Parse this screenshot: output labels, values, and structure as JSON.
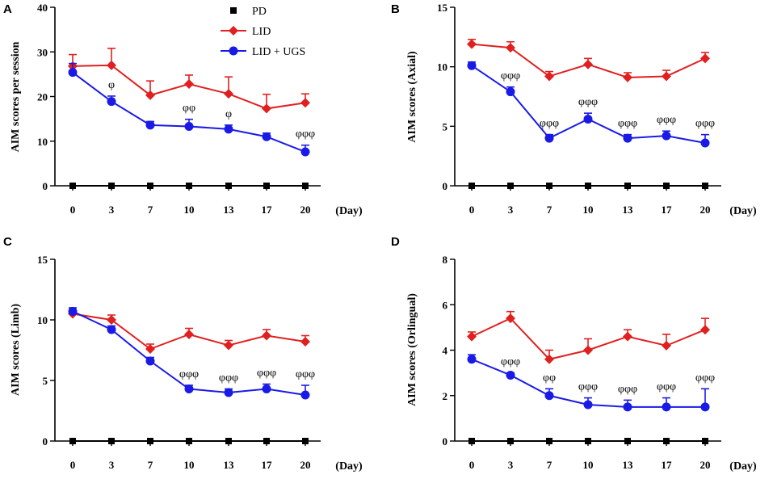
{
  "figure": {
    "legend": {
      "entries": [
        {
          "label": "PD",
          "color": "#000000",
          "marker": "square"
        },
        {
          "label": "LID",
          "color": "#e02020",
          "marker": "diamond"
        },
        {
          "label": "LID + UGS",
          "color": "#1a1ae6",
          "marker": "circle"
        }
      ]
    }
  },
  "chart_data": [
    {
      "panel": "A",
      "type": "line",
      "xlabel": "(Day)",
      "ylabel": "AIM scores per session",
      "categories": [
        "0",
        "3",
        "7",
        "10",
        "13",
        "17",
        "20"
      ],
      "ylim": [
        0,
        40
      ],
      "yticks": [
        0,
        10,
        20,
        30,
        40
      ],
      "series": [
        {
          "name": "PD",
          "values": [
            0,
            0,
            0,
            0,
            0,
            0,
            0
          ],
          "errors": [
            0,
            0,
            0,
            0,
            0,
            0,
            0
          ]
        },
        {
          "name": "LID",
          "values": [
            26.8,
            27.0,
            20.3,
            22.8,
            20.6,
            17.3,
            18.6
          ],
          "errors": [
            2.6,
            3.8,
            3.2,
            2.0,
            3.8,
            3.2,
            2.0
          ]
        },
        {
          "name": "LID + UGS",
          "values": [
            25.4,
            18.9,
            13.6,
            13.3,
            12.7,
            11.0,
            7.6
          ],
          "errors": [
            2.0,
            1.2,
            0.8,
            1.6,
            0.9,
            0.8,
            1.5
          ]
        }
      ],
      "annotations": [
        {
          "category": "3",
          "text": "φ"
        },
        {
          "category": "10",
          "text": "φφ"
        },
        {
          "category": "13",
          "text": "φ"
        },
        {
          "category": "20",
          "text": "φφφ"
        }
      ]
    },
    {
      "panel": "B",
      "type": "line",
      "xlabel": "(Day)",
      "ylabel": "AIM scores (Axial)",
      "categories": [
        "0",
        "3",
        "7",
        "10",
        "13",
        "17",
        "20"
      ],
      "ylim": [
        0,
        15
      ],
      "yticks": [
        0,
        5,
        10,
        15
      ],
      "series": [
        {
          "name": "PD",
          "values": [
            0,
            0,
            0,
            0,
            0,
            0,
            0
          ],
          "errors": [
            0,
            0,
            0,
            0,
            0,
            0,
            0
          ]
        },
        {
          "name": "LID",
          "values": [
            11.9,
            11.6,
            9.2,
            10.2,
            9.1,
            9.2,
            10.7
          ],
          "errors": [
            0.4,
            0.5,
            0.4,
            0.5,
            0.4,
            0.5,
            0.5
          ]
        },
        {
          "name": "LID + UGS",
          "values": [
            10.1,
            7.9,
            4.0,
            5.6,
            4.0,
            4.2,
            3.6
          ],
          "errors": [
            0.3,
            0.4,
            0.3,
            0.5,
            0.3,
            0.4,
            0.7
          ]
        }
      ],
      "annotations": [
        {
          "category": "3",
          "text": "φφφ"
        },
        {
          "category": "7",
          "text": "φφφ"
        },
        {
          "category": "10",
          "text": "φφφ"
        },
        {
          "category": "13",
          "text": "φφφ"
        },
        {
          "category": "17",
          "text": "φφφ"
        },
        {
          "category": "20",
          "text": "φφφ"
        }
      ]
    },
    {
      "panel": "C",
      "type": "line",
      "xlabel": "(Day)",
      "ylabel": "AIM scores (Limb)",
      "categories": [
        "0",
        "3",
        "7",
        "10",
        "13",
        "17",
        "20"
      ],
      "ylim": [
        0,
        15
      ],
      "yticks": [
        0,
        5,
        10,
        15
      ],
      "series": [
        {
          "name": "PD",
          "values": [
            0,
            0,
            0,
            0,
            0,
            0,
            0
          ],
          "errors": [
            0,
            0,
            0,
            0,
            0,
            0,
            0
          ]
        },
        {
          "name": "LID",
          "values": [
            10.5,
            10.0,
            7.6,
            8.8,
            7.9,
            8.7,
            8.2
          ],
          "errors": [
            0.3,
            0.4,
            0.4,
            0.5,
            0.4,
            0.5,
            0.5
          ]
        },
        {
          "name": "LID + UGS",
          "values": [
            10.7,
            9.2,
            6.6,
            4.3,
            4.0,
            4.3,
            3.8
          ],
          "errors": [
            0.3,
            0.3,
            0.3,
            0.3,
            0.3,
            0.4,
            0.8
          ]
        }
      ],
      "annotations": [
        {
          "category": "10",
          "text": "φφφ"
        },
        {
          "category": "13",
          "text": "φφφ"
        },
        {
          "category": "17",
          "text": "φφφ"
        },
        {
          "category": "20",
          "text": "φφφ"
        }
      ]
    },
    {
      "panel": "D",
      "type": "line",
      "xlabel": "(Day)",
      "ylabel": "AIM scores (Orlingual)",
      "categories": [
        "0",
        "3",
        "7",
        "10",
        "13",
        "17",
        "20"
      ],
      "ylim": [
        0,
        8
      ],
      "yticks": [
        0,
        2,
        4,
        6,
        8
      ],
      "series": [
        {
          "name": "PD",
          "values": [
            0,
            0,
            0,
            0,
            0,
            0,
            0
          ],
          "errors": [
            0,
            0,
            0,
            0,
            0,
            0,
            0
          ]
        },
        {
          "name": "LID",
          "values": [
            4.6,
            5.4,
            3.6,
            4.0,
            4.6,
            4.2,
            4.9
          ],
          "errors": [
            0.2,
            0.3,
            0.4,
            0.5,
            0.3,
            0.5,
            0.5
          ]
        },
        {
          "name": "LID + UGS",
          "values": [
            3.6,
            2.9,
            2.0,
            1.6,
            1.5,
            1.5,
            1.5
          ],
          "errors": [
            0.2,
            0.1,
            0.3,
            0.3,
            0.3,
            0.4,
            0.8
          ]
        }
      ],
      "annotations": [
        {
          "category": "3",
          "text": "φφφ"
        },
        {
          "category": "7",
          "text": "φφ"
        },
        {
          "category": "10",
          "text": "φφφ"
        },
        {
          "category": "13",
          "text": "φφφ"
        },
        {
          "category": "17",
          "text": "φφφ"
        },
        {
          "category": "20",
          "text": "φφφ"
        }
      ]
    }
  ]
}
